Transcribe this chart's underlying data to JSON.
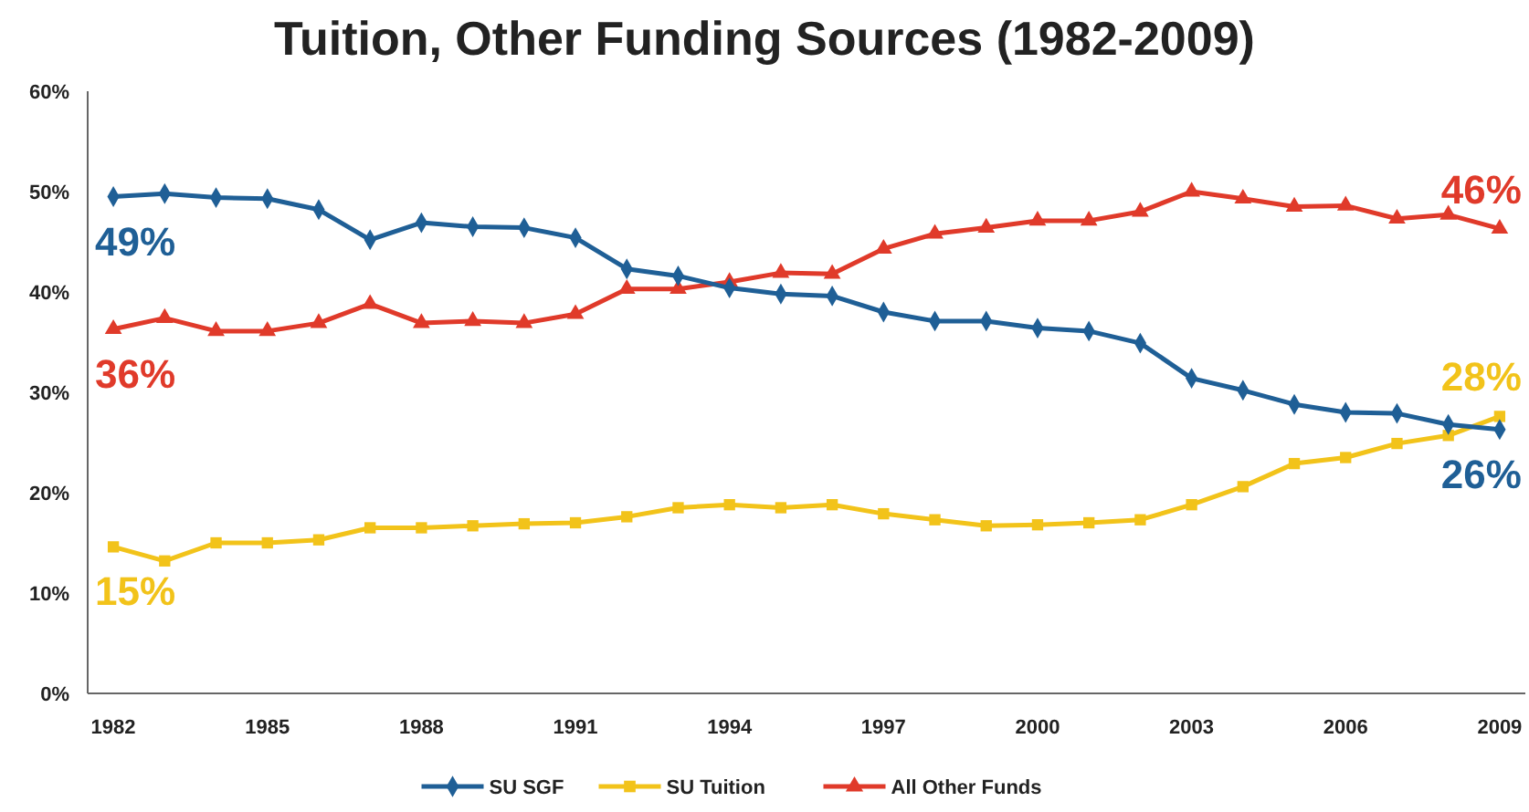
{
  "chart_data": {
    "type": "line",
    "title": "Tuition, Other Funding Sources (1982-2009)",
    "x": [
      1982,
      1983,
      1984,
      1985,
      1986,
      1987,
      1988,
      1989,
      1990,
      1991,
      1992,
      1993,
      1994,
      1995,
      1996,
      1997,
      1998,
      1999,
      2000,
      2001,
      2002,
      2003,
      2004,
      2005,
      2006,
      2007,
      2008,
      2009
    ],
    "series": [
      {
        "name": "SU SGF",
        "color": "#1f5f96",
        "marker": "diamond",
        "values": [
          49.5,
          49.8,
          49.4,
          49.3,
          48.2,
          45.2,
          46.9,
          46.5,
          46.4,
          45.4,
          42.3,
          41.6,
          40.4,
          39.8,
          39.6,
          38.0,
          37.1,
          37.1,
          36.4,
          36.1,
          34.9,
          31.4,
          30.2,
          28.8,
          28.0,
          27.9,
          26.8,
          26.3
        ],
        "value_labels": [
          "49%",
          null,
          null,
          null,
          null,
          null,
          null,
          null,
          null,
          null,
          null,
          null,
          null,
          null,
          null,
          null,
          null,
          null,
          null,
          null,
          null,
          null,
          null,
          null,
          null,
          null,
          null,
          "26%"
        ]
      },
      {
        "name": "SU Tuition",
        "color": "#f2c31a",
        "marker": "square",
        "values": [
          14.6,
          13.2,
          15.0,
          15.0,
          15.3,
          16.5,
          16.5,
          16.7,
          16.9,
          17.0,
          17.6,
          18.5,
          18.8,
          18.5,
          18.8,
          17.9,
          17.3,
          16.7,
          16.8,
          17.0,
          17.3,
          18.8,
          20.6,
          22.9,
          23.5,
          24.9,
          25.7,
          27.6
        ],
        "value_labels": [
          "15%",
          null,
          null,
          null,
          null,
          null,
          null,
          null,
          null,
          null,
          null,
          null,
          null,
          null,
          null,
          null,
          null,
          null,
          null,
          null,
          null,
          null,
          null,
          null,
          null,
          null,
          null,
          "28%"
        ]
      },
      {
        "name": "All Other Funds",
        "color": "#e03a2a",
        "marker": "triangle",
        "values": [
          36.3,
          37.4,
          36.1,
          36.1,
          36.9,
          38.8,
          36.9,
          37.1,
          36.9,
          37.8,
          40.3,
          40.3,
          41.0,
          41.9,
          41.8,
          44.3,
          45.8,
          46.4,
          47.1,
          47.1,
          48.0,
          50.0,
          49.3,
          48.5,
          48.6,
          47.3,
          47.7,
          46.3
        ],
        "value_labels": [
          "36%",
          null,
          null,
          null,
          null,
          null,
          null,
          null,
          null,
          null,
          null,
          null,
          null,
          null,
          null,
          null,
          null,
          null,
          null,
          null,
          null,
          null,
          null,
          null,
          null,
          null,
          null,
          "46%"
        ]
      }
    ],
    "xlim": [
      1981.5,
      2009.5
    ],
    "xticks": [
      1982,
      1985,
      1988,
      1991,
      1994,
      1997,
      2000,
      2003,
      2006,
      2009
    ],
    "ylim": [
      0,
      60
    ],
    "yticks": [
      {
        "value": 0,
        "label": "0%"
      },
      {
        "value": 10,
        "label": "10%"
      },
      {
        "value": 20,
        "label": "20%"
      },
      {
        "value": 30,
        "label": "30%"
      },
      {
        "value": 40,
        "label": "40%"
      },
      {
        "value": 50,
        "label": "50%"
      },
      {
        "value": 60,
        "label": "60%"
      }
    ],
    "grid": false,
    "legend": "bottom",
    "line_style": "solid"
  }
}
